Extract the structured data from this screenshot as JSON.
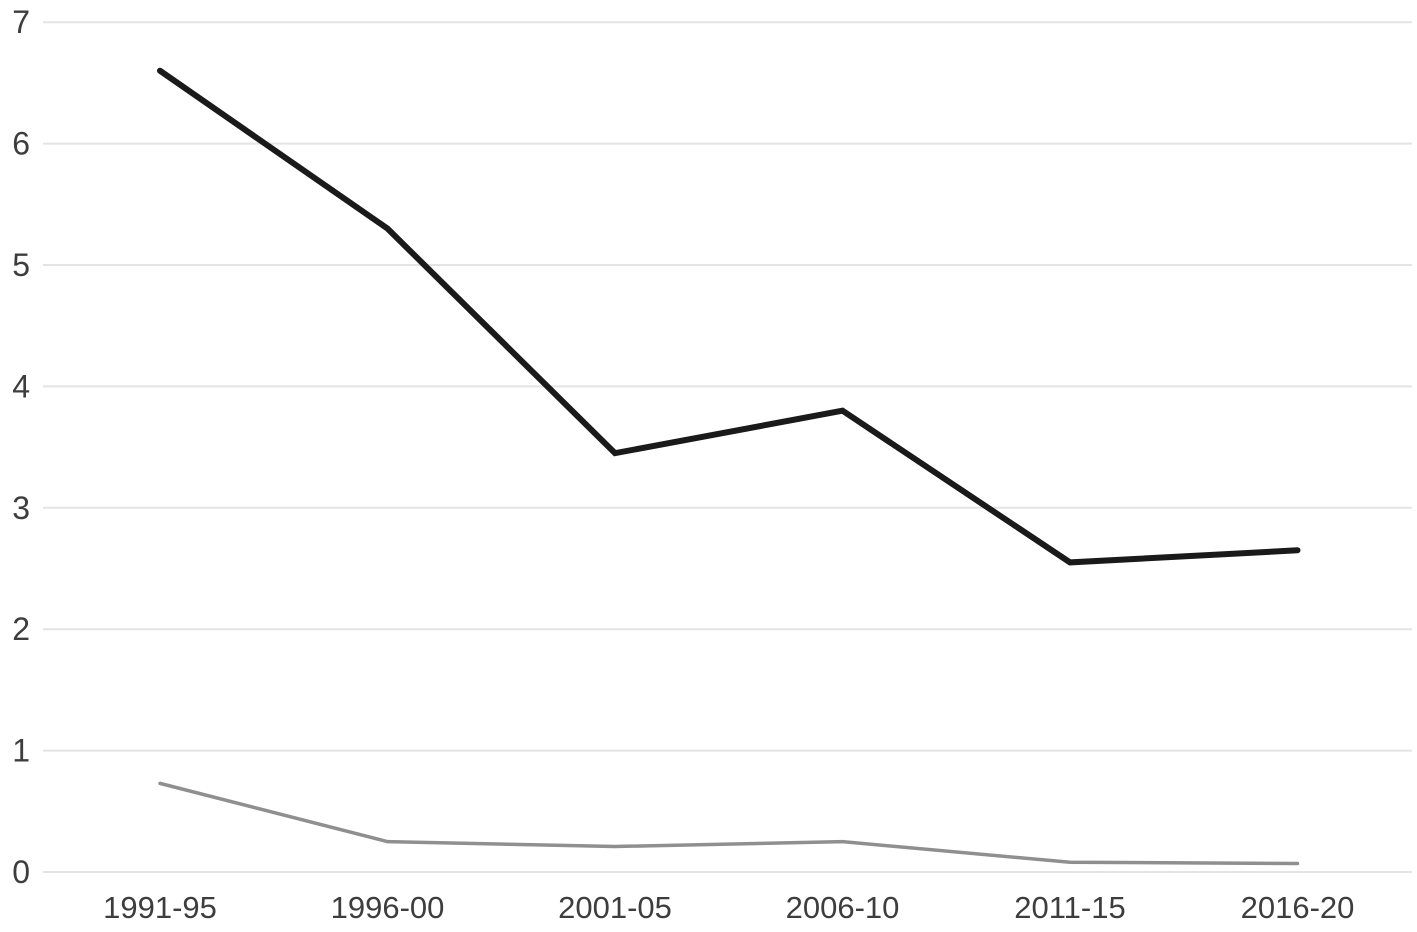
{
  "chart_data": {
    "type": "line",
    "title": "",
    "xlabel": "",
    "ylabel": "",
    "categories": [
      "1991-95",
      "1996-00",
      "2001-05",
      "2006-10",
      "2011-15",
      "2016-20"
    ],
    "series": [
      {
        "name": "dark-series",
        "color": "#1a1a1a",
        "stroke_width": 6,
        "values": [
          6.6,
          5.3,
          3.45,
          3.8,
          2.55,
          2.65
        ]
      },
      {
        "name": "gray-series",
        "color": "#8f8f8f",
        "stroke_width": 3.5,
        "values": [
          0.73,
          0.25,
          0.21,
          0.25,
          0.08,
          0.07
        ]
      }
    ],
    "ylim": [
      0,
      7
    ],
    "yticks": [
      0,
      1,
      2,
      3,
      4,
      5,
      6,
      7
    ],
    "grid": true,
    "grid_color": "#e4e4e4",
    "tick_label_color": "#3d3d3d",
    "legend": "none",
    "legend_position": "none"
  }
}
